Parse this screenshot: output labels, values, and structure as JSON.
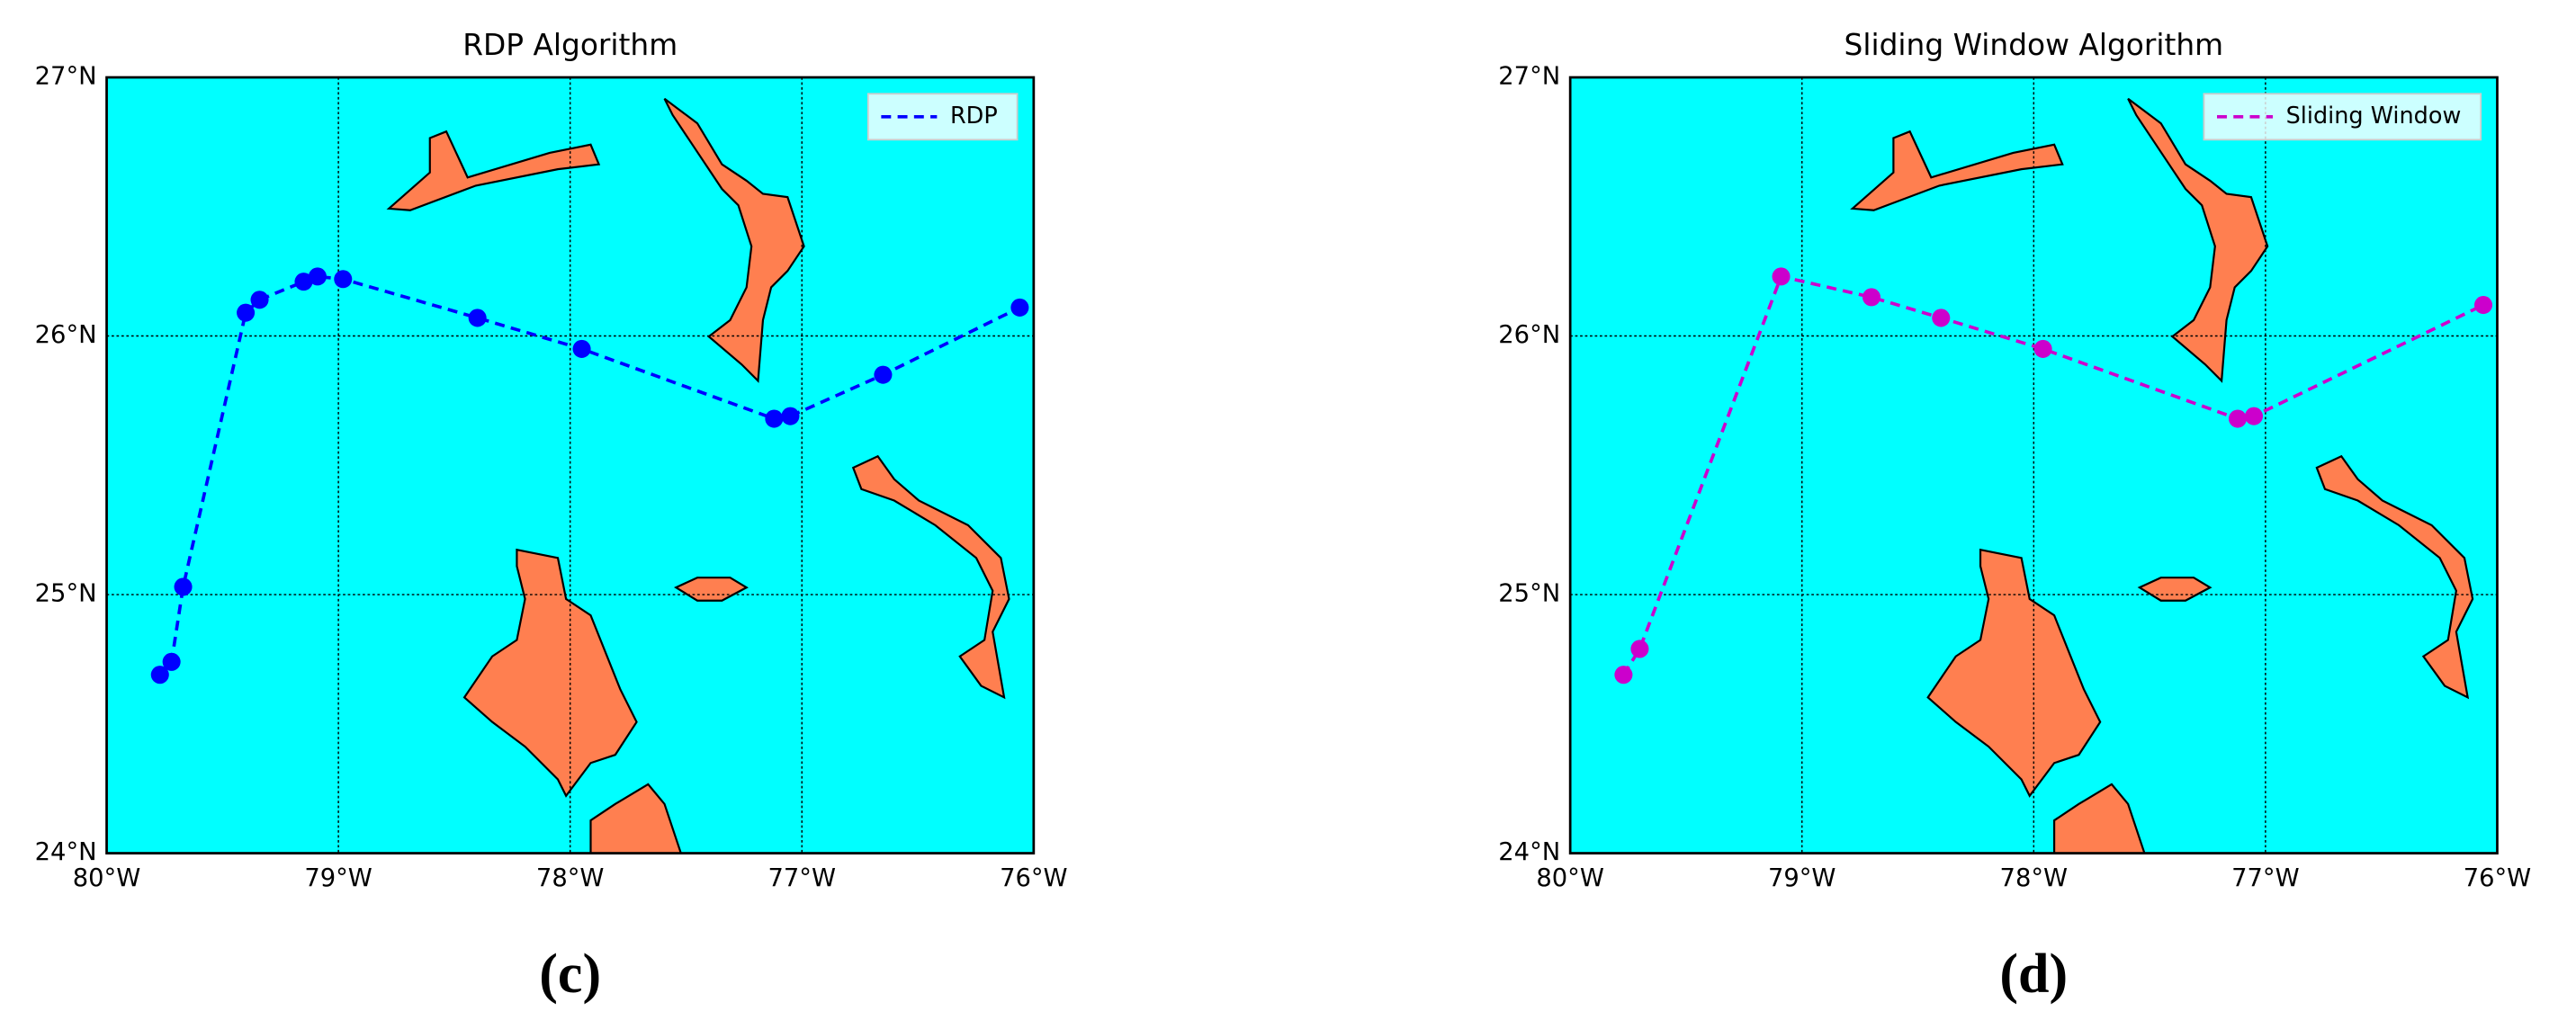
{
  "chart_data": [
    {
      "type": "line",
      "title": "RDP Algorithm",
      "panel_label": "(c)",
      "legend": "upper right",
      "grid": true,
      "background": "#00ffff",
      "land": "#ff7f50",
      "xlim": [
        -80,
        -76
      ],
      "ylim": [
        24,
        27
      ],
      "xticks": [
        {
          "value": -80,
          "label": "80°W"
        },
        {
          "value": -79,
          "label": "79°W"
        },
        {
          "value": -78,
          "label": "78°W"
        },
        {
          "value": -77,
          "label": "77°W"
        },
        {
          "value": -76,
          "label": "76°W"
        }
      ],
      "yticks": [
        {
          "value": 24,
          "label": "24°N"
        },
        {
          "value": 25,
          "label": "25°N"
        },
        {
          "value": 26,
          "label": "26°N"
        },
        {
          "value": 27,
          "label": "27°N"
        }
      ],
      "series": [
        {
          "name": "RDP",
          "color": "#0000ff",
          "x": [
            -79.77,
            -79.72,
            -79.67,
            -79.4,
            -79.34,
            -79.15,
            -79.09,
            -78.98,
            -78.4,
            -77.95,
            -77.12,
            -77.05,
            -76.65,
            -76.06
          ],
          "values": [
            24.69,
            24.74,
            25.03,
            26.09,
            26.14,
            26.21,
            26.23,
            26.22,
            26.07,
            25.95,
            25.68,
            25.69,
            25.85,
            26.11
          ]
        }
      ]
    },
    {
      "type": "line",
      "title": "Sliding Window Algorithm",
      "panel_label": "(d)",
      "legend": "upper right",
      "grid": true,
      "background": "#00ffff",
      "land": "#ff7f50",
      "xlim": [
        -80,
        -76
      ],
      "ylim": [
        24,
        27
      ],
      "xticks": [
        {
          "value": -80,
          "label": "80°W"
        },
        {
          "value": -79,
          "label": "79°W"
        },
        {
          "value": -78,
          "label": "78°W"
        },
        {
          "value": -77,
          "label": "77°W"
        },
        {
          "value": -76,
          "label": "76°W"
        }
      ],
      "yticks": [
        {
          "value": 24,
          "label": "24°N"
        },
        {
          "value": 25,
          "label": "25°N"
        },
        {
          "value": 26,
          "label": "26°N"
        },
        {
          "value": 27,
          "label": "27°N"
        }
      ],
      "series": [
        {
          "name": "Sliding Window",
          "color": "#cc00cc",
          "x": [
            -79.77,
            -79.7,
            -79.09,
            -78.7,
            -78.4,
            -77.96,
            -77.12,
            -77.05,
            -76.06
          ],
          "values": [
            24.69,
            24.79,
            26.23,
            26.15,
            26.07,
            25.95,
            25.68,
            25.69,
            26.12
          ]
        }
      ]
    }
  ]
}
